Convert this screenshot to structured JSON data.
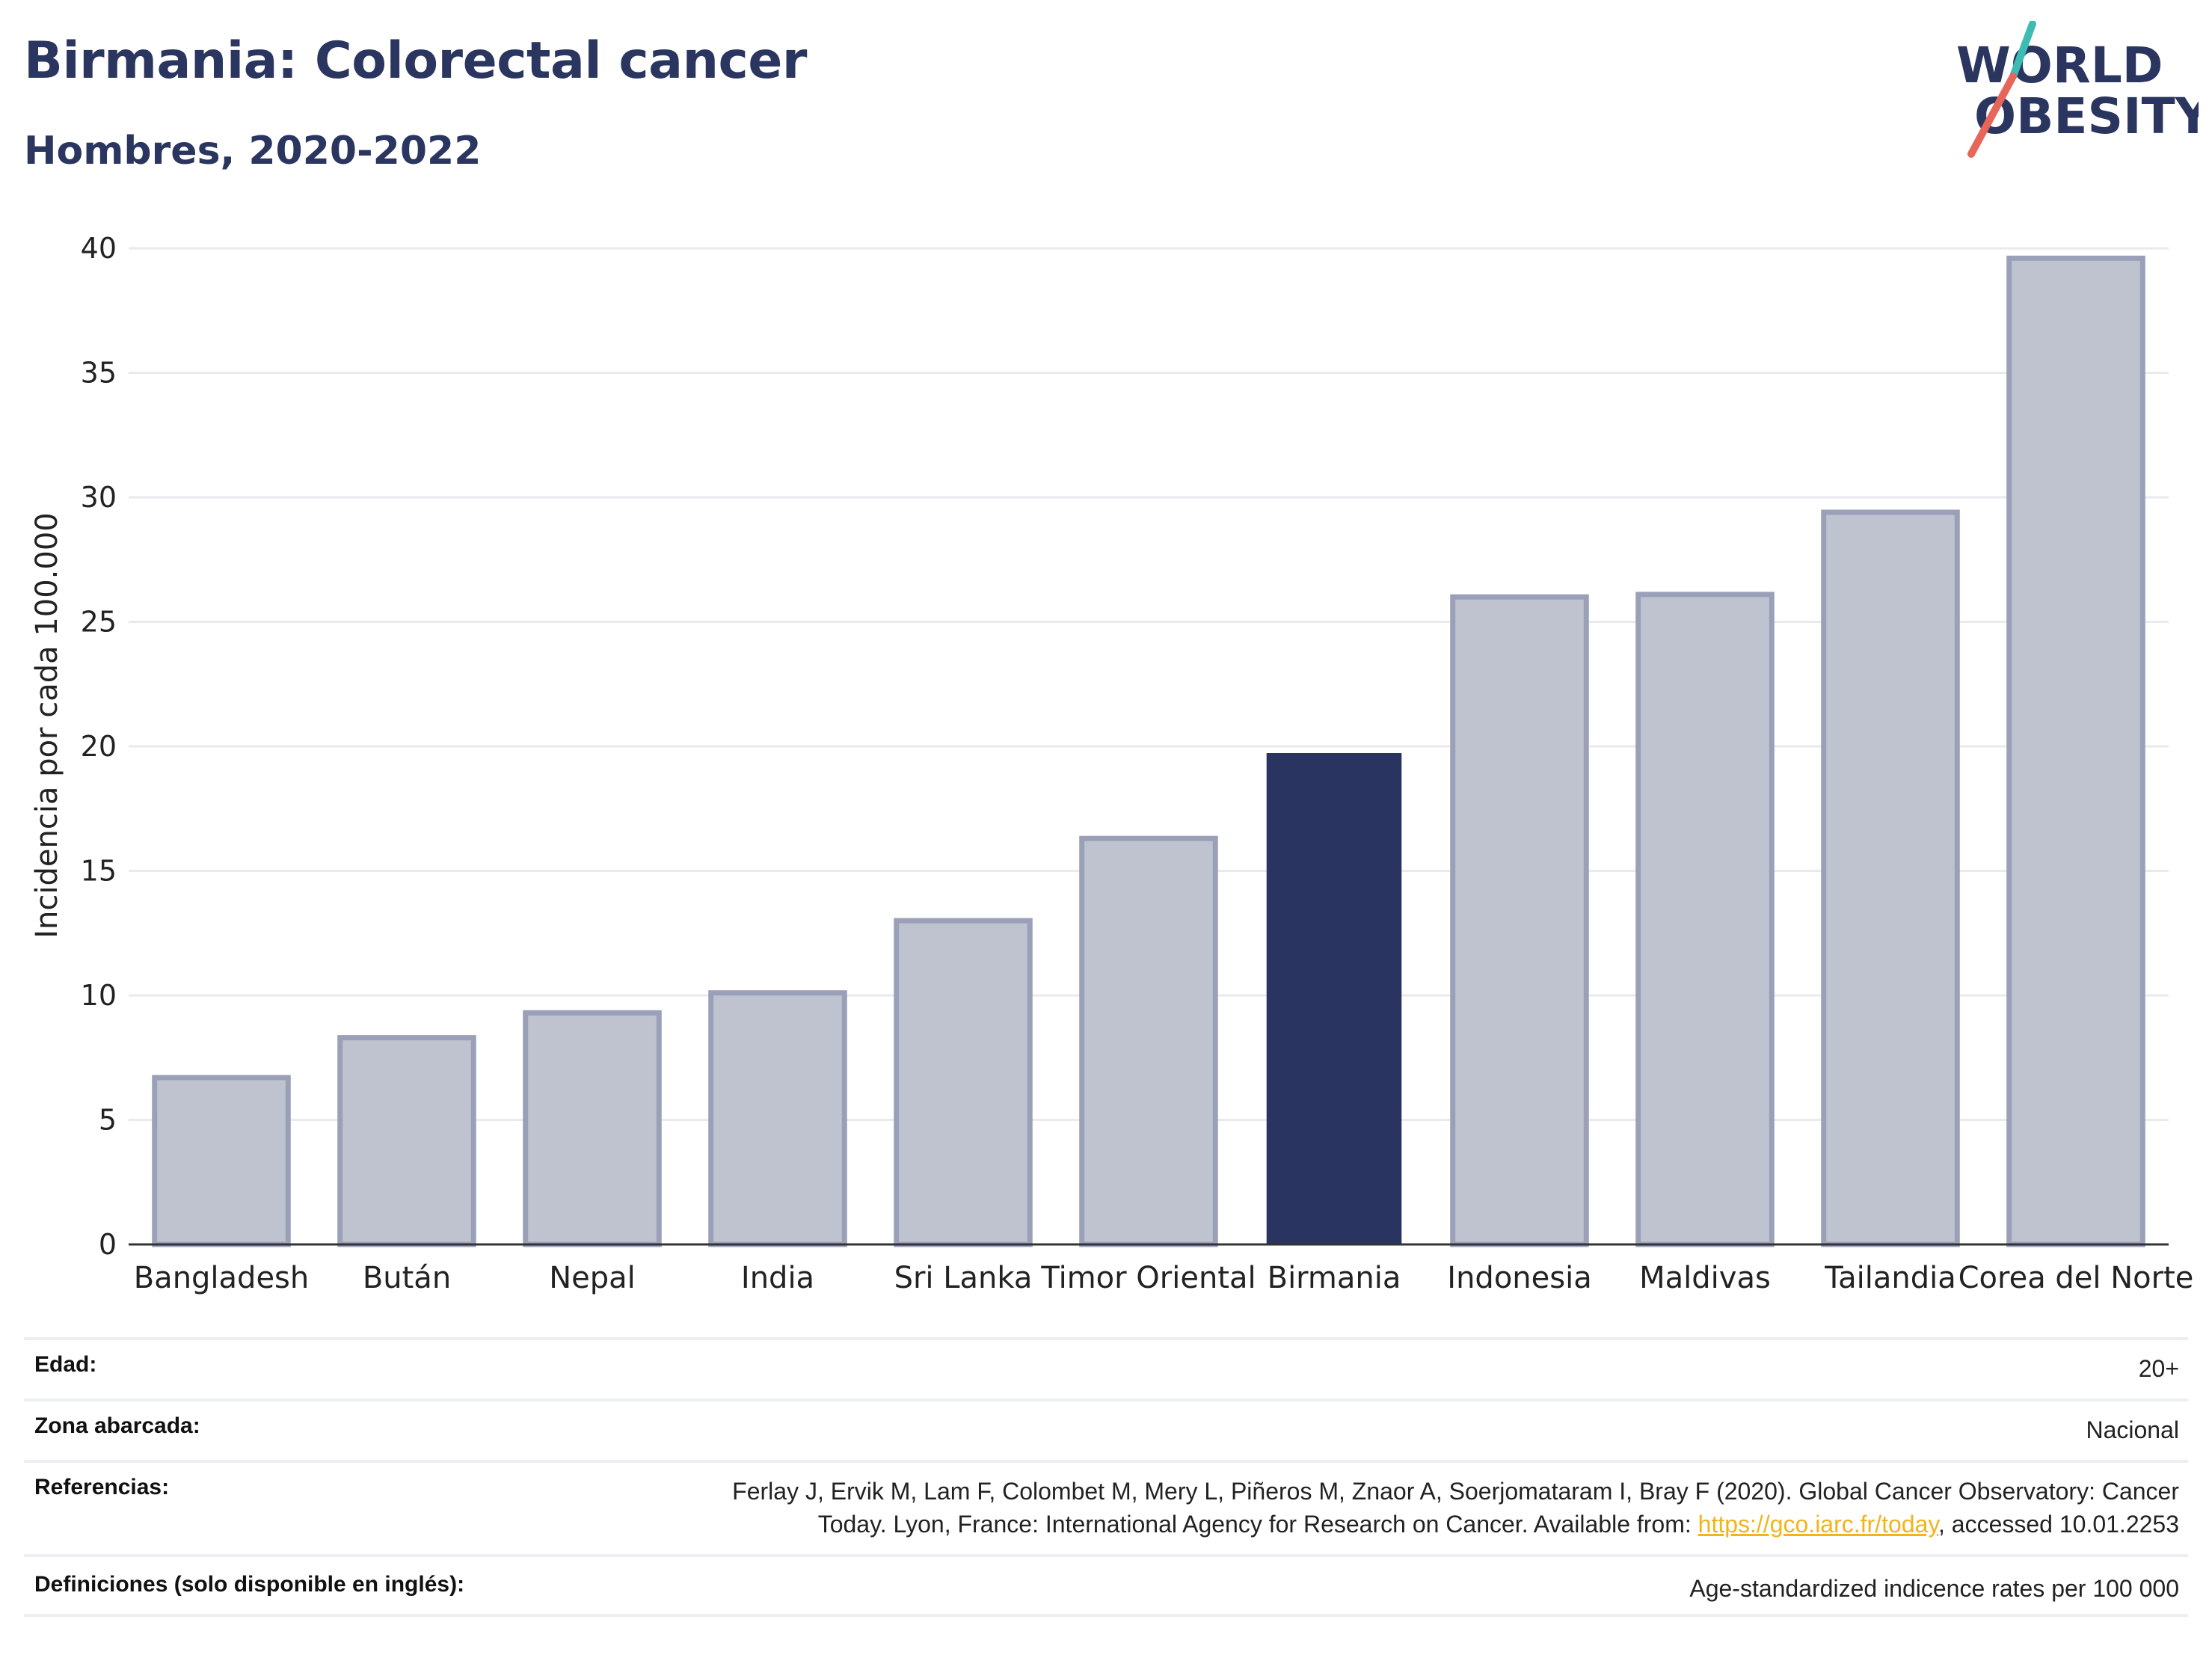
{
  "header": {
    "title": "Birmania: Colorectal cancer",
    "subtitle": "Hombres, 2020-2022"
  },
  "logo": {
    "line1": "WORLD",
    "line2": "OBESITY",
    "text_color": "#2a3560",
    "slash_colors": [
      "#3dbcb4",
      "#e8655a"
    ]
  },
  "chart_data": {
    "type": "bar",
    "title": "Birmania: Colorectal cancer",
    "subtitle": "Hombres, 2020-2022",
    "xlabel": "",
    "ylabel": "Incidencia por cada 100.000",
    "ylim": [
      0,
      40
    ],
    "yticks": [
      0,
      5,
      10,
      15,
      20,
      25,
      30,
      35,
      40
    ],
    "grid": true,
    "categories": [
      "Bangladesh",
      "Bután",
      "Nepal",
      "India",
      "Sri Lanka",
      "Timor Oriental",
      "Birmania",
      "Indonesia",
      "Maldivas",
      "Tailandia",
      "Corea del Norte"
    ],
    "values": [
      6.7,
      8.3,
      9.3,
      10.1,
      13.0,
      16.3,
      19.7,
      26.0,
      26.1,
      29.4,
      39.6
    ],
    "highlight": "Birmania",
    "colors": {
      "default_fill": "#bfc3d0",
      "default_stroke": "#9aa0b8",
      "highlight": "#293560",
      "grid": "#e9eaef",
      "axis": "#333333"
    }
  },
  "meta": {
    "rows": [
      {
        "label": "Edad:",
        "value": "20+"
      },
      {
        "label": "Zona abarcada:",
        "value": "Nacional"
      },
      {
        "label": "Referencias:",
        "value_line1": "Ferlay J, Ervik M, Lam F, Colombet M, Mery L, Piñeros M, Znaor A, Soerjomataram I, Bray F (2020). Global Cancer Observatory: Cancer",
        "value_line2_pre": "Today. Lyon, France: International Agency for Research on Cancer. Available from: ",
        "link_text": "https://gco.iarc.fr/today",
        "value_line2_post": ", accessed 10.01.2253"
      },
      {
        "label": "Definiciones (solo disponible en inglés):",
        "value": "Age-standardized indicence rates per 100 000"
      }
    ]
  }
}
